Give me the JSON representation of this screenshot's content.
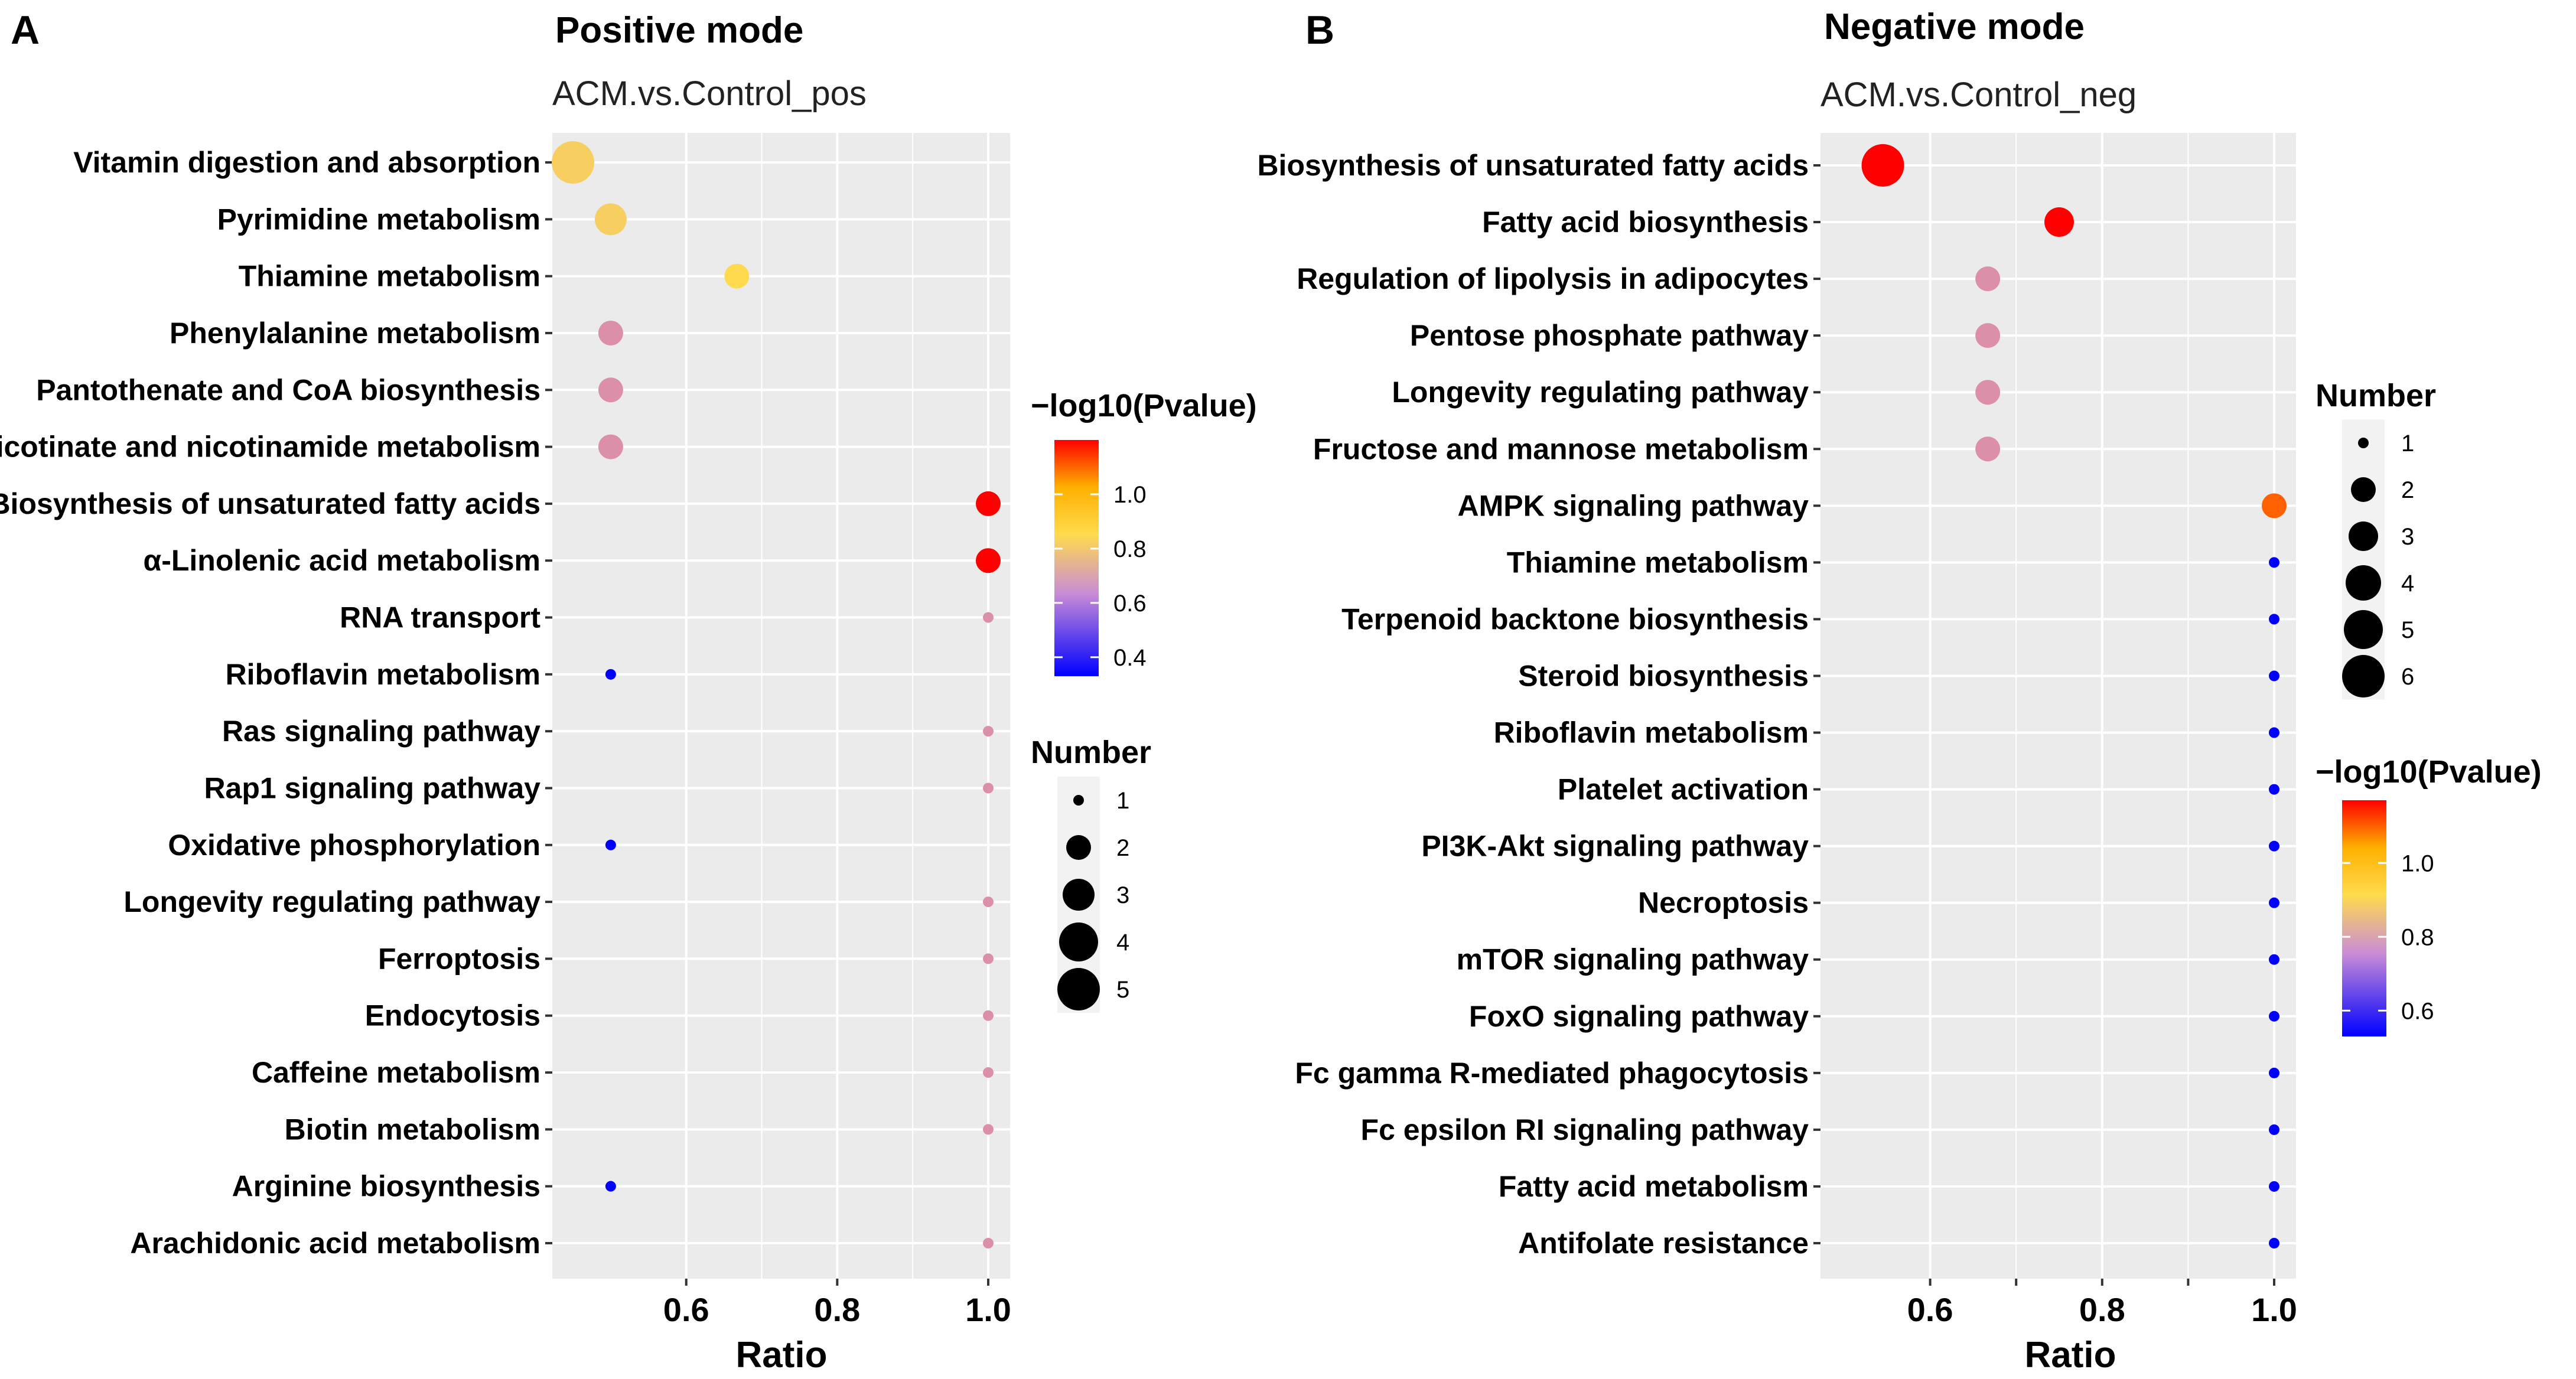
{
  "chart_data": [
    {
      "panel": "A",
      "type": "scatter",
      "title": "Positive mode",
      "subtitle": "ACM.vs.Control_pos",
      "xlabel": "Ratio",
      "xlim": [
        0.45,
        1.0
      ],
      "xticks": [
        "0.6",
        "0.8",
        "1.0"
      ],
      "xtick_values": [
        0.6,
        0.8,
        1.0
      ],
      "color_legend": {
        "title": "−log10(Pvalue)",
        "min": 0.33,
        "max": 1.2,
        "ticks": [
          "0.4",
          "0.6",
          "0.8",
          "1.0"
        ],
        "tick_values": [
          0.4,
          0.6,
          0.8,
          1.0
        ]
      },
      "size_legend": {
        "title": "Number",
        "values": [
          1,
          2,
          3,
          4,
          5
        ],
        "labels": [
          "1",
          "2",
          "3",
          "4",
          "5"
        ]
      },
      "points": [
        {
          "pathway": "Vitamin digestion and absorption",
          "ratio": 0.45,
          "number": 5,
          "neglog10p": 0.82
        },
        {
          "pathway": "Pyrimidine metabolism",
          "ratio": 0.5,
          "number": 3,
          "neglog10p": 0.82
        },
        {
          "pathway": "Thiamine metabolism",
          "ratio": 0.667,
          "number": 2,
          "neglog10p": 0.85
        },
        {
          "pathway": "Phenylalanine metabolism",
          "ratio": 0.5,
          "number": 2,
          "neglog10p": 0.62
        },
        {
          "pathway": "Pantothenate and CoA biosynthesis",
          "ratio": 0.5,
          "number": 2,
          "neglog10p": 0.62
        },
        {
          "pathway": "Nicotinate and nicotinamide metabolism",
          "ratio": 0.5,
          "number": 2,
          "neglog10p": 0.62
        },
        {
          "pathway": "Biosynthesis of unsaturated fatty acids",
          "ratio": 1.0,
          "number": 2,
          "neglog10p": 1.2
        },
        {
          "pathway": "α-Linolenic acid metabolism",
          "ratio": 1.0,
          "number": 2,
          "neglog10p": 1.2
        },
        {
          "pathway": "RNA transport",
          "ratio": 1.0,
          "number": 1,
          "neglog10p": 0.62
        },
        {
          "pathway": "Riboflavin metabolism",
          "ratio": 0.5,
          "number": 1,
          "neglog10p": 0.33
        },
        {
          "pathway": "Ras signaling pathway",
          "ratio": 1.0,
          "number": 1,
          "neglog10p": 0.62
        },
        {
          "pathway": "Rap1 signaling pathway",
          "ratio": 1.0,
          "number": 1,
          "neglog10p": 0.62
        },
        {
          "pathway": "Oxidative phosphorylation",
          "ratio": 0.5,
          "number": 1,
          "neglog10p": 0.33
        },
        {
          "pathway": "Longevity regulating pathway",
          "ratio": 1.0,
          "number": 1,
          "neglog10p": 0.62
        },
        {
          "pathway": "Ferroptosis",
          "ratio": 1.0,
          "number": 1,
          "neglog10p": 0.62
        },
        {
          "pathway": "Endocytosis",
          "ratio": 1.0,
          "number": 1,
          "neglog10p": 0.62
        },
        {
          "pathway": "Caffeine metabolism",
          "ratio": 1.0,
          "number": 1,
          "neglog10p": 0.62
        },
        {
          "pathway": "Biotin metabolism",
          "ratio": 1.0,
          "number": 1,
          "neglog10p": 0.62
        },
        {
          "pathway": "Arginine biosynthesis",
          "ratio": 0.5,
          "number": 1,
          "neglog10p": 0.33
        },
        {
          "pathway": "Arachidonic acid metabolism",
          "ratio": 1.0,
          "number": 1,
          "neglog10p": 0.62
        }
      ]
    },
    {
      "panel": "B",
      "type": "scatter",
      "title": "Negative mode",
      "subtitle": "ACM.vs.Control_neg",
      "xlabel": "Ratio",
      "xlim": [
        0.5,
        1.0
      ],
      "xticks": [
        "0.6",
        "0.8",
        "1.0"
      ],
      "xtick_values": [
        0.6,
        0.8,
        1.0
      ],
      "color_legend": {
        "title": "−log10(Pvalue)",
        "min": 0.53,
        "max": 1.17,
        "ticks": [
          "0.6",
          "0.8",
          "1.0"
        ],
        "tick_values": [
          0.6,
          0.8,
          1.0
        ]
      },
      "size_legend": {
        "title": "Number",
        "values": [
          1,
          2,
          3,
          4,
          5,
          6
        ],
        "labels": [
          "1",
          "2",
          "3",
          "4",
          "5",
          "6"
        ]
      },
      "points": [
        {
          "pathway": "Biosynthesis of unsaturated fatty acids",
          "ratio": 0.545,
          "number": 6,
          "neglog10p": 1.17
        },
        {
          "pathway": "Fatty acid biosynthesis",
          "ratio": 0.75,
          "number": 3,
          "neglog10p": 1.17
        },
        {
          "pathway": "Regulation of lipolysis in adipocytes",
          "ratio": 0.667,
          "number": 2,
          "neglog10p": 0.75
        },
        {
          "pathway": "Pentose phosphate pathway",
          "ratio": 0.667,
          "number": 2,
          "neglog10p": 0.75
        },
        {
          "pathway": "Longevity regulating pathway",
          "ratio": 0.667,
          "number": 2,
          "neglog10p": 0.75
        },
        {
          "pathway": "Fructose and mannose metabolism",
          "ratio": 0.667,
          "number": 2,
          "neglog10p": 0.75
        },
        {
          "pathway": "AMPK signaling pathway",
          "ratio": 1.0,
          "number": 2,
          "neglog10p": 1.1
        },
        {
          "pathway": "Thiamine metabolism",
          "ratio": 1.0,
          "number": 1,
          "neglog10p": 0.53
        },
        {
          "pathway": "Terpenoid backtone biosynthesis",
          "ratio": 1.0,
          "number": 1,
          "neglog10p": 0.53
        },
        {
          "pathway": "Steroid biosynthesis",
          "ratio": 1.0,
          "number": 1,
          "neglog10p": 0.53
        },
        {
          "pathway": "Riboflavin metabolism",
          "ratio": 1.0,
          "number": 1,
          "neglog10p": 0.53
        },
        {
          "pathway": "Platelet activation",
          "ratio": 1.0,
          "number": 1,
          "neglog10p": 0.53
        },
        {
          "pathway": "PI3K-Akt signaling pathway",
          "ratio": 1.0,
          "number": 1,
          "neglog10p": 0.53
        },
        {
          "pathway": "Necroptosis",
          "ratio": 1.0,
          "number": 1,
          "neglog10p": 0.53
        },
        {
          "pathway": "mTOR signaling pathway",
          "ratio": 1.0,
          "number": 1,
          "neglog10p": 0.53
        },
        {
          "pathway": "FoxO signaling pathway",
          "ratio": 1.0,
          "number": 1,
          "neglog10p": 0.53
        },
        {
          "pathway": "Fc gamma R-mediated phagocytosis",
          "ratio": 1.0,
          "number": 1,
          "neglog10p": 0.53
        },
        {
          "pathway": "Fc epsilon RI signaling pathway",
          "ratio": 1.0,
          "number": 1,
          "neglog10p": 0.53
        },
        {
          "pathway": "Fatty acid metabolism",
          "ratio": 1.0,
          "number": 1,
          "neglog10p": 0.53
        },
        {
          "pathway": "Antifolate resistance",
          "ratio": 1.0,
          "number": 1,
          "neglog10p": 0.53
        }
      ]
    }
  ],
  "colors": {
    "panel_bg": "#ebebeb",
    "grid": "#ffffff",
    "scale_low": "#0000ff",
    "scale_mid1": "#e29ec8",
    "scale_mid2": "#ffff00",
    "scale_high": "#ff0000"
  }
}
